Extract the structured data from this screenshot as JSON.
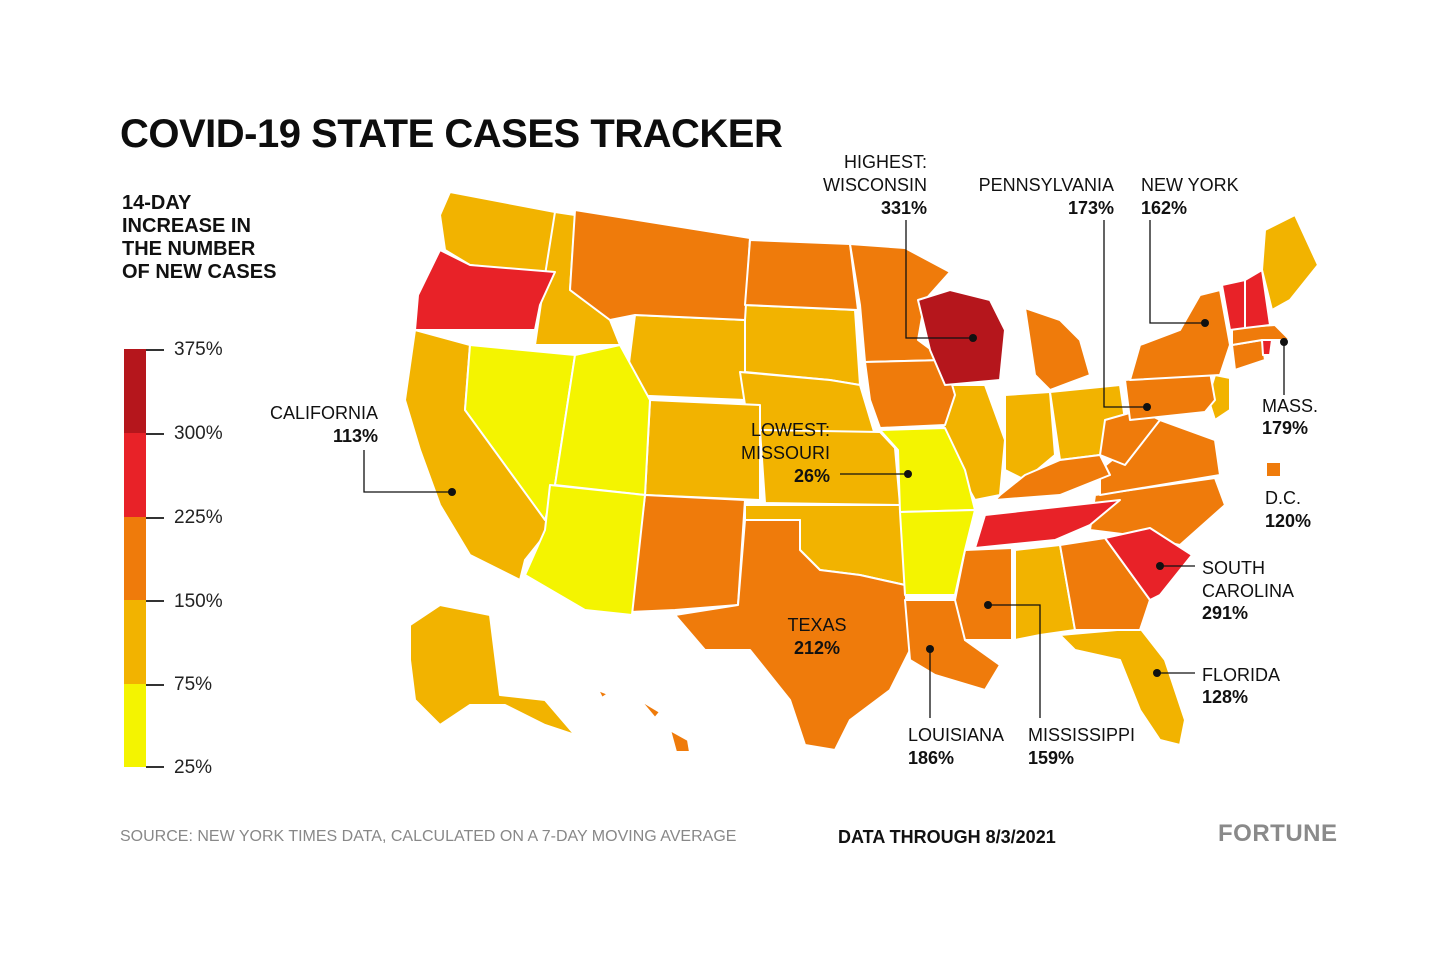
{
  "title": "COVID-19 STATE CASES TRACKER",
  "legend": {
    "title": "14-DAY INCREASE IN THE NUMBER OF NEW CASES",
    "ticks": [
      "375%",
      "300%",
      "225%",
      "150%",
      "75%",
      "25%"
    ],
    "colors": [
      "#b5161c",
      "#e82228",
      "#ef7b0b",
      "#f2b300",
      "#f4f400"
    ]
  },
  "callouts": {
    "wisconsin": {
      "lines": [
        "HIGHEST:",
        "WISCONSIN"
      ],
      "value": "331%"
    },
    "pennsylvania": {
      "lines": [
        "PENNSYLVANIA"
      ],
      "value": "173%"
    },
    "new_york": {
      "lines": [
        "NEW YORK"
      ],
      "value": "162%"
    },
    "california": {
      "lines": [
        "CALIFORNIA"
      ],
      "value": "113%"
    },
    "missouri": {
      "lines": [
        "LOWEST:",
        "MISSOURI"
      ],
      "value": "26%"
    },
    "mass": {
      "lines": [
        "MASS."
      ],
      "value": "179%"
    },
    "dc": {
      "lines": [
        "D.C."
      ],
      "value": "120%"
    },
    "south_carolina": {
      "lines": [
        "SOUTH",
        "CAROLINA"
      ],
      "value": "291%"
    },
    "texas": {
      "lines": [
        "TEXAS"
      ],
      "value": "212%"
    },
    "florida": {
      "lines": [
        "FLORIDA"
      ],
      "value": "128%"
    },
    "louisiana": {
      "lines": [
        "LOUISIANA"
      ],
      "value": "186%"
    },
    "mississippi": {
      "lines": [
        "MISSISSIPPI"
      ],
      "value": "159%"
    }
  },
  "footer": {
    "source": "SOURCE: NEW YORK TIMES DATA, CALCULATED ON A 7-DAY MOVING AVERAGE",
    "through": "DATA THROUGH 8/3/2021",
    "brand": "FORTUNE"
  }
}
